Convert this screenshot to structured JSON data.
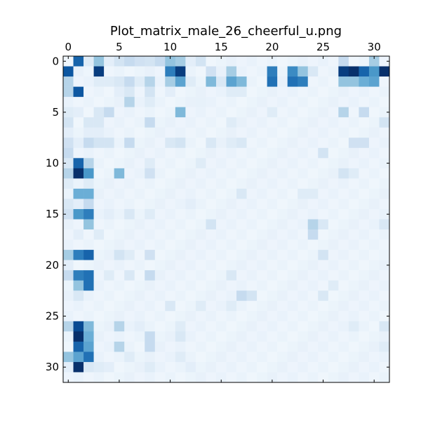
{
  "chart_data": {
    "type": "heatmap",
    "title": "Plot_matrix_male_26_cheerful_u.png",
    "xlabel": "",
    "ylabel": "",
    "rows": 32,
    "cols": 32,
    "x_ticks": [
      0,
      5,
      10,
      15,
      20,
      25,
      30
    ],
    "y_ticks": [
      0,
      5,
      10,
      15,
      20,
      25,
      30
    ],
    "x_tick_position": "top",
    "colormap": "Blues",
    "vmin": 0,
    "vmax": 1,
    "grid": false,
    "sparse_values": [
      [
        0,
        1,
        0.8
      ],
      [
        0,
        2,
        0.12
      ],
      [
        0,
        3,
        0.4
      ],
      [
        0,
        4,
        0.1
      ],
      [
        0,
        5,
        0.18
      ],
      [
        0,
        6,
        0.25
      ],
      [
        0,
        7,
        0.2
      ],
      [
        0,
        8,
        0.18
      ],
      [
        0,
        9,
        0.25
      ],
      [
        0,
        10,
        0.4
      ],
      [
        0,
        11,
        0.35
      ],
      [
        0,
        12,
        0.1
      ],
      [
        0,
        13,
        0.18
      ],
      [
        0,
        27,
        0.25
      ],
      [
        0,
        30,
        0.35
      ],
      [
        1,
        0,
        0.85
      ],
      [
        1,
        2,
        0.05
      ],
      [
        1,
        3,
        0.95
      ],
      [
        1,
        10,
        0.7
      ],
      [
        1,
        11,
        0.95
      ],
      [
        1,
        14,
        0.2
      ],
      [
        1,
        16,
        0.35
      ],
      [
        1,
        20,
        0.7
      ],
      [
        1,
        22,
        0.65
      ],
      [
        1,
        23,
        0.4
      ],
      [
        1,
        24,
        0.15
      ],
      [
        1,
        27,
        0.95
      ],
      [
        1,
        28,
        1.0
      ],
      [
        1,
        29,
        0.8
      ],
      [
        1,
        30,
        0.6
      ],
      [
        1,
        31,
        1.0
      ],
      [
        2,
        0,
        0.3
      ],
      [
        2,
        3,
        0.12
      ],
      [
        2,
        4,
        0.12
      ],
      [
        2,
        5,
        0.15
      ],
      [
        2,
        6,
        0.25
      ],
      [
        2,
        7,
        0.12
      ],
      [
        2,
        8,
        0.3
      ],
      [
        2,
        10,
        0.35
      ],
      [
        2,
        11,
        0.55
      ],
      [
        2,
        12,
        0.12
      ],
      [
        2,
        14,
        0.45
      ],
      [
        2,
        15,
        0.15
      ],
      [
        2,
        16,
        0.55
      ],
      [
        2,
        17,
        0.45
      ],
      [
        2,
        20,
        0.75
      ],
      [
        2,
        22,
        0.75
      ],
      [
        2,
        23,
        0.7
      ],
      [
        2,
        27,
        0.4
      ],
      [
        2,
        28,
        0.4
      ],
      [
        2,
        29,
        0.5
      ],
      [
        2,
        30,
        0.55
      ],
      [
        3,
        0,
        0.3
      ],
      [
        3,
        1,
        0.85
      ],
      [
        3,
        5,
        0.1
      ],
      [
        3,
        6,
        0.15
      ],
      [
        3,
        8,
        0.18
      ],
      [
        3,
        10,
        0.1
      ],
      [
        3,
        16,
        0.12
      ],
      [
        3,
        17,
        0.12
      ],
      [
        4,
        6,
        0.3
      ],
      [
        4,
        8,
        0.12
      ],
      [
        4,
        13,
        0.08
      ],
      [
        5,
        0,
        0.12
      ],
      [
        5,
        1,
        0.1
      ],
      [
        5,
        3,
        0.15
      ],
      [
        5,
        4,
        0.25
      ],
      [
        5,
        11,
        0.45
      ],
      [
        5,
        20,
        0.12
      ],
      [
        5,
        27,
        0.3
      ],
      [
        5,
        29,
        0.25
      ],
      [
        6,
        0,
        0.18
      ],
      [
        6,
        2,
        0.15
      ],
      [
        6,
        3,
        0.15
      ],
      [
        6,
        8,
        0.25
      ],
      [
        6,
        16,
        0.12
      ],
      [
        6,
        31,
        0.18
      ],
      [
        7,
        0,
        0.1
      ],
      [
        7,
        2,
        0.1
      ],
      [
        7,
        3,
        0.1
      ],
      [
        8,
        0,
        0.2
      ],
      [
        8,
        1,
        0.1
      ],
      [
        8,
        2,
        0.25
      ],
      [
        8,
        3,
        0.18
      ],
      [
        8,
        4,
        0.18
      ],
      [
        8,
        6,
        0.25
      ],
      [
        8,
        10,
        0.15
      ],
      [
        8,
        11,
        0.18
      ],
      [
        8,
        14,
        0.15
      ],
      [
        8,
        16,
        0.12
      ],
      [
        8,
        17,
        0.15
      ],
      [
        8,
        28,
        0.2
      ],
      [
        8,
        29,
        0.2
      ],
      [
        9,
        0,
        0.25
      ],
      [
        9,
        25,
        0.18
      ],
      [
        10,
        0,
        0.15
      ],
      [
        10,
        1,
        0.8
      ],
      [
        10,
        2,
        0.3
      ],
      [
        10,
        8,
        0.12
      ],
      [
        10,
        13,
        0.12
      ],
      [
        11,
        0,
        0.3
      ],
      [
        11,
        1,
        1.0
      ],
      [
        11,
        2,
        0.6
      ],
      [
        11,
        5,
        0.45
      ],
      [
        11,
        8,
        0.2
      ],
      [
        11,
        27,
        0.18
      ],
      [
        11,
        28,
        0.12
      ],
      [
        12,
        0,
        0.12
      ],
      [
        12,
        2,
        0.12
      ],
      [
        13,
        1,
        0.5
      ],
      [
        13,
        2,
        0.5
      ],
      [
        13,
        17,
        0.15
      ],
      [
        13,
        23,
        0.12
      ],
      [
        13,
        24,
        0.12
      ],
      [
        14,
        0,
        0.15
      ],
      [
        14,
        1,
        0.1
      ],
      [
        14,
        2,
        0.25
      ],
      [
        14,
        12,
        0.1
      ],
      [
        15,
        0,
        0.2
      ],
      [
        15,
        1,
        0.6
      ],
      [
        15,
        2,
        0.7
      ],
      [
        15,
        4,
        0.1
      ],
      [
        15,
        6,
        0.15
      ],
      [
        15,
        8,
        0.12
      ],
      [
        16,
        2,
        0.4
      ],
      [
        16,
        14,
        0.18
      ],
      [
        16,
        24,
        0.3
      ],
      [
        16,
        25,
        0.15
      ],
      [
        16,
        31,
        0.15
      ],
      [
        17,
        1,
        0.1
      ],
      [
        17,
        3,
        0.12
      ],
      [
        17,
        24,
        0.25
      ],
      [
        19,
        0,
        0.35
      ],
      [
        19,
        1,
        0.7
      ],
      [
        19,
        2,
        0.8
      ],
      [
        19,
        5,
        0.18
      ],
      [
        19,
        6,
        0.12
      ],
      [
        19,
        8,
        0.2
      ],
      [
        19,
        25,
        0.18
      ],
      [
        20,
        0,
        0.1
      ],
      [
        21,
        0,
        0.25
      ],
      [
        21,
        1,
        0.7
      ],
      [
        21,
        2,
        0.75
      ],
      [
        21,
        4,
        0.12
      ],
      [
        21,
        6,
        0.15
      ],
      [
        21,
        8,
        0.25
      ],
      [
        21,
        16,
        0.15
      ],
      [
        22,
        1,
        0.4
      ],
      [
        22,
        2,
        0.75
      ],
      [
        22,
        26,
        0.12
      ],
      [
        23,
        1,
        0.15
      ],
      [
        23,
        17,
        0.25
      ],
      [
        23,
        18,
        0.18
      ],
      [
        23,
        25,
        0.15
      ],
      [
        24,
        10,
        0.15
      ],
      [
        24,
        13,
        0.12
      ],
      [
        24,
        16,
        0.12
      ],
      [
        26,
        0,
        0.3
      ],
      [
        26,
        1,
        0.9
      ],
      [
        26,
        2,
        0.45
      ],
      [
        26,
        5,
        0.3
      ],
      [
        26,
        7,
        0.1
      ],
      [
        26,
        11,
        0.12
      ],
      [
        26,
        28,
        0.12
      ],
      [
        26,
        31,
        0.15
      ],
      [
        27,
        1,
        1.0
      ],
      [
        27,
        2,
        0.5
      ],
      [
        27,
        8,
        0.25
      ],
      [
        27,
        11,
        0.15
      ],
      [
        28,
        1,
        0.8
      ],
      [
        28,
        2,
        0.55
      ],
      [
        28,
        5,
        0.3
      ],
      [
        28,
        8,
        0.25
      ],
      [
        28,
        31,
        0.12
      ],
      [
        29,
        0,
        0.4
      ],
      [
        29,
        1,
        0.55
      ],
      [
        29,
        2,
        0.75
      ],
      [
        29,
        6,
        0.12
      ],
      [
        29,
        11,
        0.12
      ],
      [
        30,
        0,
        0.1
      ],
      [
        30,
        1,
        1.0
      ],
      [
        30,
        2,
        0.15
      ],
      [
        30,
        3,
        0.12
      ],
      [
        30,
        4,
        0.1
      ],
      [
        30,
        8,
        0.12
      ],
      [
        30,
        12,
        0.1
      ]
    ],
    "background_value": 0.04
  }
}
